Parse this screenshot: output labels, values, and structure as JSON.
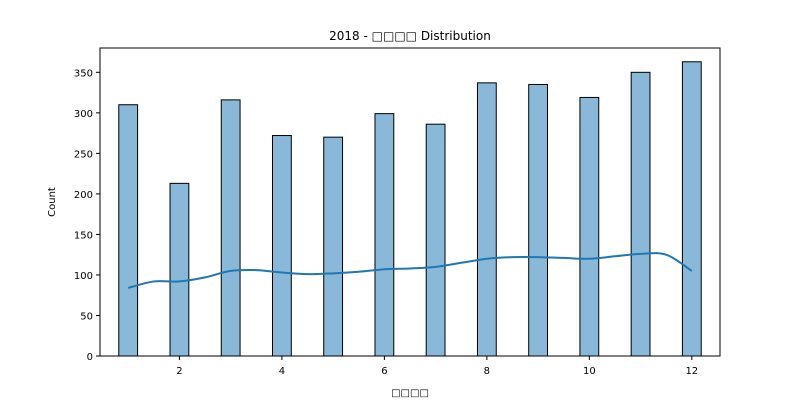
{
  "chart_data": {
    "type": "bar",
    "title": "2018 - □□□□ Distribution",
    "xlabel": "□□□□",
    "ylabel": "Count",
    "xlim": [
      0.45,
      12.55
    ],
    "ylim": [
      0,
      380
    ],
    "xticks": [
      2,
      4,
      6,
      8,
      10,
      12
    ],
    "yticks": [
      0,
      50,
      100,
      150,
      200,
      250,
      300,
      350
    ],
    "bar_width": 0.367,
    "categories": [
      1,
      2,
      3,
      4,
      5,
      6,
      7,
      8,
      9,
      10,
      11,
      12
    ],
    "values": [
      310,
      213,
      316,
      272,
      270,
      299,
      286,
      337,
      335,
      319,
      350,
      363
    ],
    "kde_line": {
      "x": [
        1,
        1.5,
        2,
        2.5,
        3,
        3.5,
        4,
        4.5,
        5,
        5.5,
        6,
        6.5,
        7,
        7.5,
        8,
        8.5,
        9,
        9.5,
        10,
        10.5,
        11,
        11.5,
        12
      ],
      "y": [
        84,
        92,
        92,
        97,
        105,
        106,
        103,
        101,
        102,
        104,
        107,
        108,
        110,
        115,
        120,
        122,
        122,
        121,
        120,
        123,
        126,
        125,
        105
      ]
    },
    "grid": false,
    "legend": "none",
    "colors": {
      "bar_fill": "#8ab8d9",
      "bar_edge": "#000000",
      "line": "#1f77b4"
    }
  }
}
